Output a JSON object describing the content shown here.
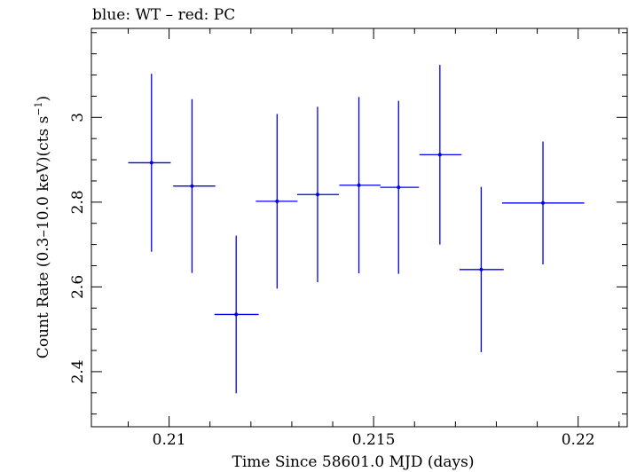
{
  "chart_data": {
    "type": "scatter",
    "title": "blue: WT – red: PC",
    "xlabel": "Time Since 58601.0 MJD (days)",
    "ylabel_prefix": "Count Rate (0.3–10.0 keV)(cts s",
    "ylabel_exp": "−1",
    "ylabel_suffix": ")",
    "xlim": [
      0.2081,
      0.2212
    ],
    "ylim": [
      2.27,
      3.21
    ],
    "xticks_major": [
      0.21,
      0.215,
      0.22
    ],
    "xtick_labels": [
      "0.21",
      "0.215",
      "0.22"
    ],
    "yticks_major": [
      2.4,
      2.6,
      2.8,
      3.0
    ],
    "ytick_labels": [
      "2.4",
      "2.6",
      "2.8",
      "3"
    ],
    "x_minor_step": 0.001,
    "y_minor_step": 0.05,
    "grid": false,
    "series": [
      {
        "color": "#0000ee",
        "points": [
          {
            "x": 0.20957,
            "y": 2.893,
            "xerr_lo": 0.00057,
            "xerr_hi": 0.00047,
            "yerr_lo": 0.21,
            "yerr_hi": 0.21
          },
          {
            "x": 0.21056,
            "y": 2.838,
            "xerr_lo": 0.00046,
            "xerr_hi": 0.00057,
            "yerr_lo": 0.205,
            "yerr_hi": 0.205
          },
          {
            "x": 0.21164,
            "y": 2.535,
            "xerr_lo": 0.00053,
            "xerr_hi": 0.00055,
            "yerr_lo": 0.186,
            "yerr_hi": 0.186
          },
          {
            "x": 0.21264,
            "y": 2.802,
            "xerr_lo": 0.00052,
            "xerr_hi": 0.0005,
            "yerr_lo": 0.206,
            "yerr_hi": 0.206
          },
          {
            "x": 0.21363,
            "y": 2.818,
            "xerr_lo": 0.0005,
            "xerr_hi": 0.00052,
            "yerr_lo": 0.207,
            "yerr_hi": 0.207
          },
          {
            "x": 0.21464,
            "y": 2.84,
            "xerr_lo": 0.00048,
            "xerr_hi": 0.00053,
            "yerr_lo": 0.208,
            "yerr_hi": 0.208
          },
          {
            "x": 0.21561,
            "y": 2.835,
            "xerr_lo": 0.00045,
            "xerr_hi": 0.0005,
            "yerr_lo": 0.204,
            "yerr_hi": 0.204
          },
          {
            "x": 0.21662,
            "y": 2.912,
            "xerr_lo": 0.0005,
            "xerr_hi": 0.00053,
            "yerr_lo": 0.212,
            "yerr_hi": 0.212
          },
          {
            "x": 0.21763,
            "y": 2.641,
            "xerr_lo": 0.00053,
            "xerr_hi": 0.00055,
            "yerr_lo": 0.195,
            "yerr_hi": 0.195
          },
          {
            "x": 0.21914,
            "y": 2.798,
            "xerr_lo": 0.001,
            "xerr_hi": 0.00101,
            "yerr_lo": 0.145,
            "yerr_hi": 0.145
          }
        ]
      }
    ]
  }
}
